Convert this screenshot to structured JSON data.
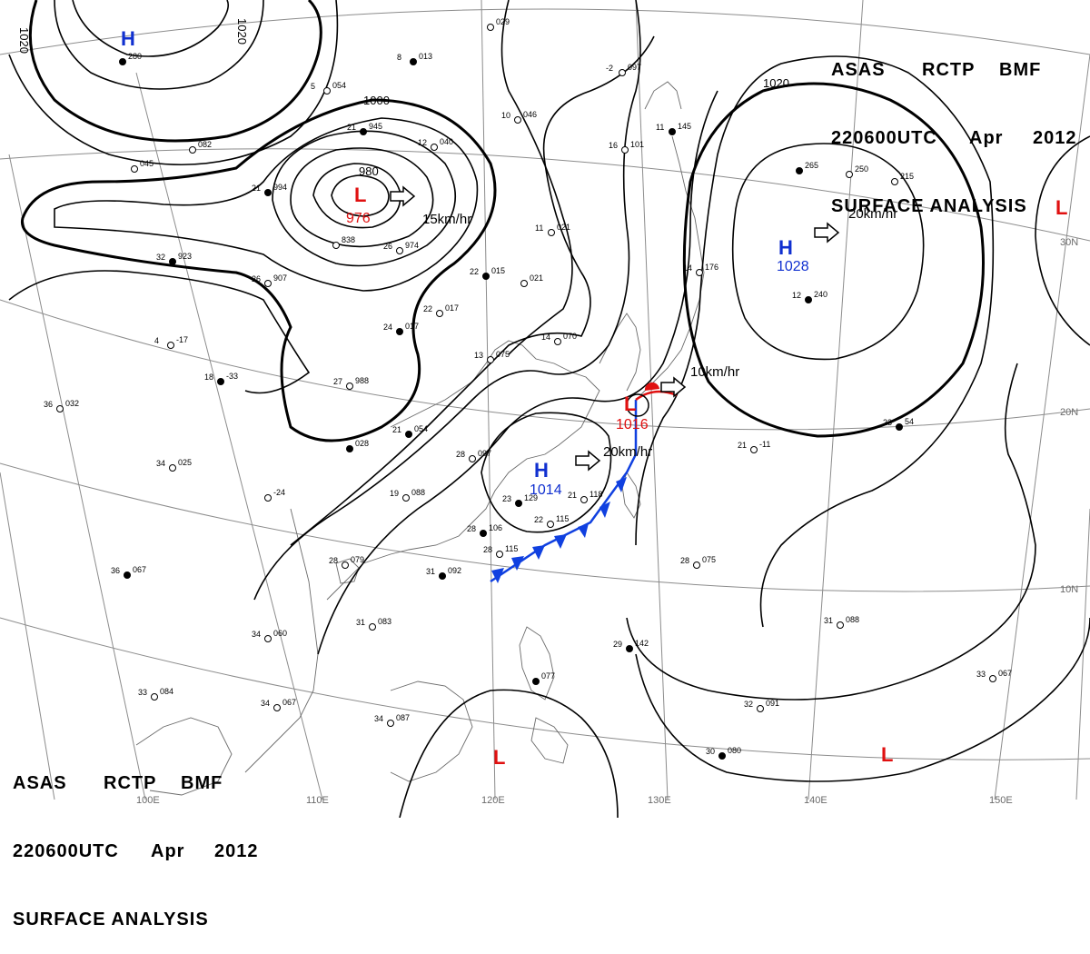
{
  "header": {
    "line1": [
      "ASAS",
      "RCTP",
      "BMF"
    ],
    "line2": [
      "220600UTC",
      "Apr",
      "2012"
    ],
    "line3": "SURFACE ANALYSIS"
  },
  "grid": {
    "lon_labels": [
      "100E",
      "110E",
      "120E",
      "130E",
      "140E",
      "150E"
    ],
    "lat_labels": [
      "30N",
      "20N",
      "10N"
    ]
  },
  "isobars": [
    "1020",
    "1020",
    "1000",
    "980",
    "1020"
  ],
  "pressure_centers": [
    {
      "type": "H",
      "value": "",
      "color": "#1030d0"
    },
    {
      "type": "L",
      "value": "976",
      "color": "#e01010"
    },
    {
      "type": "H",
      "value": "1028",
      "color": "#1030d0"
    },
    {
      "type": "L",
      "value": "1016",
      "color": "#e01010"
    },
    {
      "type": "H",
      "value": "1014",
      "color": "#1030d0"
    },
    {
      "type": "L",
      "value": "",
      "color": "#e01010"
    },
    {
      "type": "L",
      "value": "",
      "color": "#e01010"
    },
    {
      "type": "L",
      "value": "",
      "color": "#e01010"
    }
  ],
  "motion_vectors": [
    "15km/hr",
    "20km/hr",
    "10km/hr",
    "20km/hr"
  ],
  "stations": [
    {
      "t": "",
      "p": "280"
    },
    {
      "t": "",
      "p": "029"
    },
    {
      "t": "5",
      "p": "054"
    },
    {
      "t": "8",
      "p": "013"
    },
    {
      "t": "10",
      "p": "046"
    },
    {
      "t": "-2",
      "p": "097"
    },
    {
      "t": "11",
      "p": "145"
    },
    {
      "t": "12",
      "p": "040"
    },
    {
      "t": "16",
      "p": "101"
    },
    {
      "t": "21",
      "p": "945"
    },
    {
      "t": "",
      "p": "045"
    },
    {
      "t": "",
      "p": "082"
    },
    {
      "t": "21",
      "p": "994"
    },
    {
      "t": "",
      "p": "838"
    },
    {
      "t": "26",
      "p": "974"
    },
    {
      "t": "32",
      "p": "923"
    },
    {
      "t": "26",
      "p": "907"
    },
    {
      "t": "11",
      "p": "021"
    },
    {
      "t": "22",
      "p": "015"
    },
    {
      "t": "",
      "p": "021"
    },
    {
      "t": "22",
      "p": "017"
    },
    {
      "t": "24",
      "p": "017"
    },
    {
      "t": "14",
      "p": "070"
    },
    {
      "t": "13",
      "p": "075"
    },
    {
      "t": "",
      "p": "265"
    },
    {
      "t": "",
      "p": "250"
    },
    {
      "t": "",
      "p": "215"
    },
    {
      "t": "12",
      "p": "240"
    },
    {
      "t": "14",
      "p": "176"
    },
    {
      "t": "4",
      "p": "-17"
    },
    {
      "t": "18",
      "p": "-33"
    },
    {
      "t": "27",
      "p": "988"
    },
    {
      "t": "36",
      "p": "032"
    },
    {
      "t": "21",
      "p": "054"
    },
    {
      "t": "28",
      "p": "097"
    },
    {
      "t": "34",
      "p": "025"
    },
    {
      "t": "",
      "p": "028"
    },
    {
      "t": "",
      "p": "-24"
    },
    {
      "t": "19",
      "p": "088"
    },
    {
      "t": "23",
      "p": "129"
    },
    {
      "t": "21",
      "p": "118"
    },
    {
      "t": "22",
      "p": "115"
    },
    {
      "t": "28",
      "p": "106"
    },
    {
      "t": "28",
      "p": "115"
    },
    {
      "t": "28",
      "p": "079"
    },
    {
      "t": "31",
      "p": "092"
    },
    {
      "t": "28",
      "p": "075"
    },
    {
      "t": "31",
      "p": "088"
    },
    {
      "t": "36",
      "p": "067"
    },
    {
      "t": "34",
      "p": "060"
    },
    {
      "t": "31",
      "p": "083"
    },
    {
      "t": "29",
      "p": "142"
    },
    {
      "t": "33",
      "p": "084"
    },
    {
      "t": "34",
      "p": "067"
    },
    {
      "t": "",
      "p": "077"
    },
    {
      "t": "34",
      "p": "087"
    },
    {
      "t": "32",
      "p": "091"
    },
    {
      "t": "30",
      "p": "080"
    },
    {
      "t": "33",
      "p": "067"
    },
    {
      "t": "21",
      "p": "-11"
    },
    {
      "t": "23",
      "p": "54"
    }
  ],
  "colors": {
    "high": "#1030d0",
    "low": "#e01010",
    "cold_front": "#1040e0",
    "warm_front": "#e01010",
    "grid": "#808080",
    "coast": "#606060",
    "isobar": "#000000"
  }
}
